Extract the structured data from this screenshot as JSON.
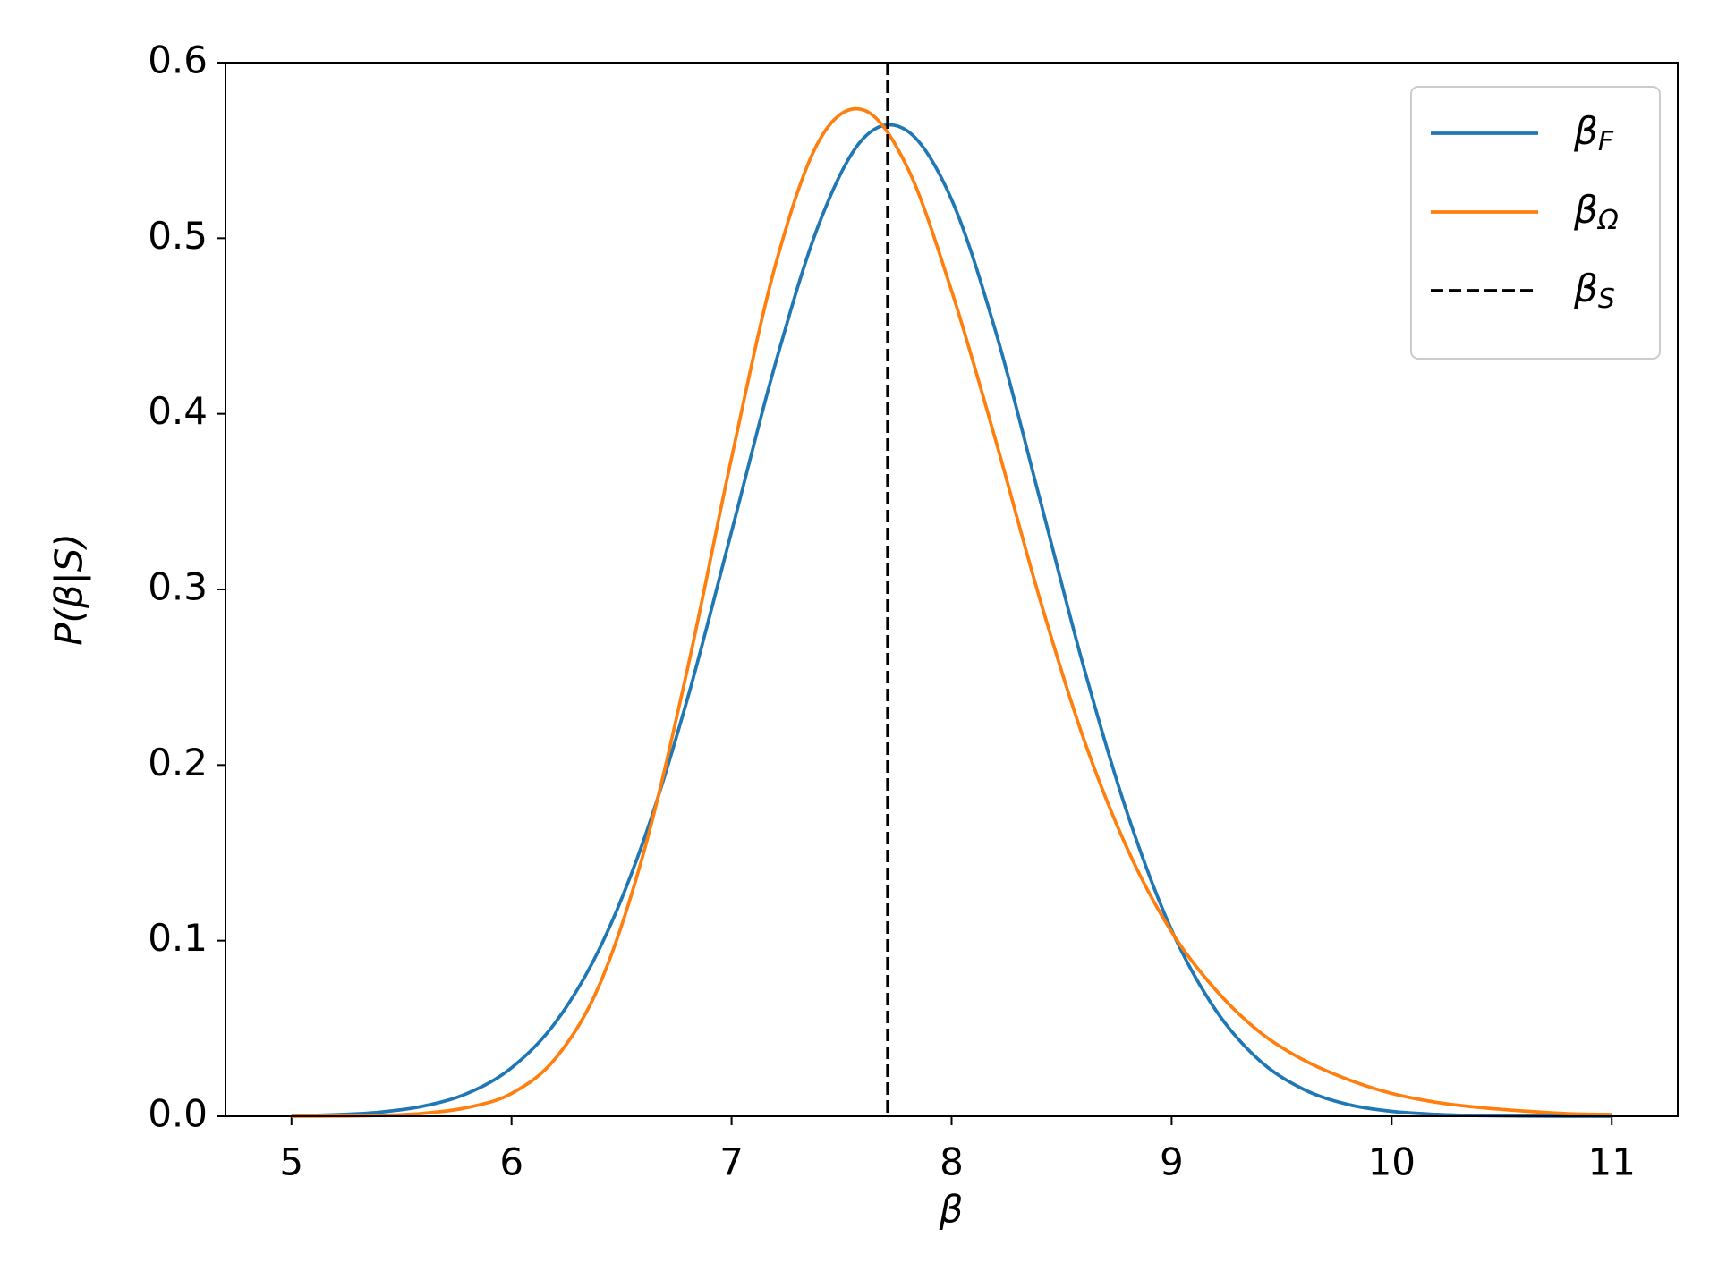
{
  "chart_data": {
    "type": "line",
    "xlabel": "β",
    "ylabel": "P(β|S)",
    "x": [
      5,
      5.2,
      5.4,
      5.6,
      5.8,
      6,
      6.2,
      6.4,
      6.6,
      6.8,
      7,
      7.2,
      7.4,
      7.6,
      7.8,
      8,
      8.2,
      8.4,
      8.6,
      8.8,
      9,
      9.2,
      9.4,
      9.6,
      9.8,
      10,
      10.2,
      10.4,
      10.6,
      10.8,
      11
    ],
    "series": [
      {
        "name": "βF",
        "color": "#1f77b4",
        "values": [
          0.0003,
          0.0009,
          0.0023,
          0.0058,
          0.0131,
          0.0276,
          0.0535,
          0.0955,
          0.157,
          0.238,
          0.333,
          0.429,
          0.509,
          0.557,
          0.561,
          0.522,
          0.447,
          0.352,
          0.256,
          0.172,
          0.106,
          0.0605,
          0.0317,
          0.0153,
          0.0068,
          0.0028,
          0.0011,
          0.0004,
          0.0001,
          0,
          0
        ]
      },
      {
        "name": "βΩ",
        "color": "#ff7f0e",
        "values": [
          0,
          0.0001,
          0.0005,
          0.0017,
          0.005,
          0.013,
          0.033,
          0.075,
          0.15,
          0.255,
          0.375,
          0.485,
          0.556,
          0.573,
          0.54,
          0.47,
          0.385,
          0.295,
          0.215,
          0.152,
          0.105,
          0.072,
          0.048,
          0.032,
          0.021,
          0.013,
          0.008,
          0.005,
          0.003,
          0.0015,
          0.001
        ]
      }
    ],
    "vlines": [
      {
        "name": "βS",
        "x": 7.71,
        "color": "#000000",
        "style": "dashed"
      }
    ],
    "xlim": [
      4.7,
      11.3
    ],
    "ylim": [
      0,
      0.6
    ],
    "xticks": [
      5,
      6,
      7,
      8,
      9,
      10,
      11
    ],
    "yticks": [
      {
        "value": 0,
        "label": "0.0"
      },
      0.1,
      0.2,
      0.3,
      0.4,
      0.5,
      0.6
    ],
    "grid": false,
    "legend": "upper right"
  }
}
